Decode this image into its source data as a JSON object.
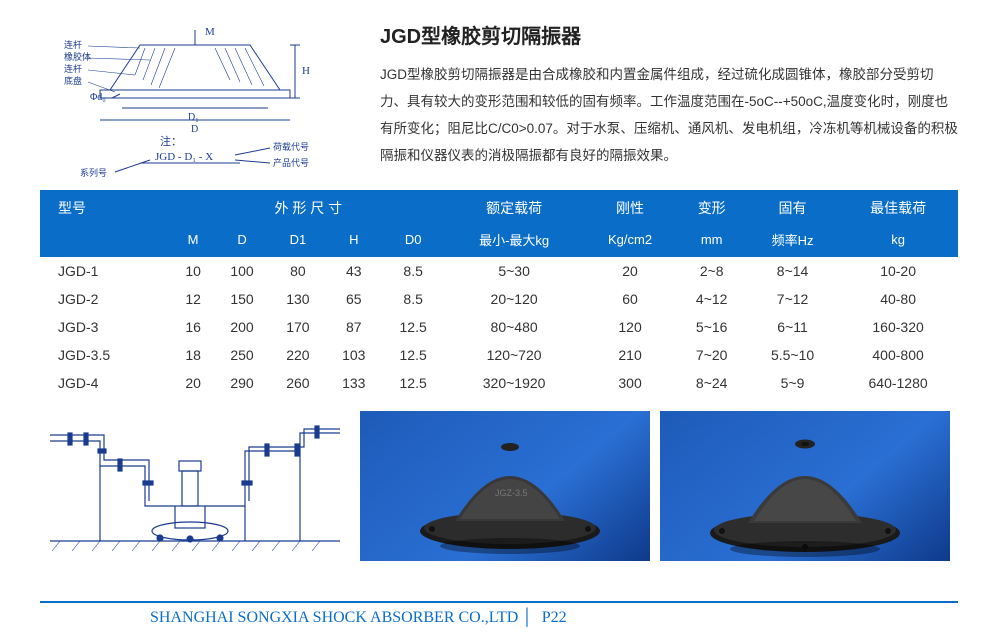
{
  "header": {
    "title": "JGD型橡胶剪切隔振器",
    "description": "JGD型橡胶剪切隔振器是由合成橡胶和内置金属件组成，经过硫化成圆锥体，橡胶部分受剪切力、具有较大的变形范围和较低的固有频率。工作温度范围在-5oC--+50oC,温度变化时，刚度也有所变化；阻尼比C/C0>0.07。对于水泵、压缩机、通风机、发电机组，冷冻机等机械设备的积极隔振和仪器仪表的消极隔振都有良好的隔振效果。"
  },
  "diagram": {
    "labels": {
      "m": "M",
      "h": "H",
      "d0": "Φd₀",
      "d1": "D₁",
      "d": "D"
    },
    "annotate_left": [
      "连杆",
      "橡胶体",
      "连杆",
      "底盘"
    ],
    "note_title": "注：",
    "code_line": "JGD - D₁ - X",
    "arrow_top": "荷载代号",
    "arrow_bottom": "产品代号",
    "series": "系列号"
  },
  "table": {
    "head1": [
      "型号",
      "外 形 尺 寸",
      "额定载荷",
      "刚性",
      "变形",
      "固有",
      "最佳载荷"
    ],
    "head2": [
      "",
      "M",
      "D",
      "D1",
      "H",
      "D0",
      "最小-最大kg",
      "Kg/cm2",
      "mm",
      "频率Hz",
      "kg"
    ],
    "rows": [
      [
        "JGD-1",
        "10",
        "100",
        "80",
        "43",
        "8.5",
        "5~30",
        "20",
        "2~8",
        "8~14",
        "10-20"
      ],
      [
        "JGD-2",
        "12",
        "150",
        "130",
        "65",
        "8.5",
        "20~120",
        "60",
        "4~12",
        "7~12",
        "40-80"
      ],
      [
        "JGD-3",
        "16",
        "200",
        "170",
        "87",
        "12.5",
        "80~480",
        "120",
        "5~16",
        "6~11",
        "160-320"
      ],
      [
        "JGD-3.5",
        "18",
        "250",
        "220",
        "103",
        "12.5",
        "120~720",
        "210",
        "7~20",
        "5.5~10",
        "400-800"
      ],
      [
        "JGD-4",
        "20",
        "290",
        "260",
        "133",
        "12.5",
        "320~1920",
        "300",
        "8~24",
        "5~9",
        "640-1280"
      ]
    ]
  },
  "photos": {
    "marking": "JGZ-3.5"
  },
  "footer": {
    "company": "SHANGHAI SONGXIA SHOCK ABSORBER CO.,LTD",
    "page": "P22"
  },
  "colors": {
    "brand": "#0a6dc8",
    "text": "#333333",
    "photo_bg": "#1e5bb8"
  }
}
